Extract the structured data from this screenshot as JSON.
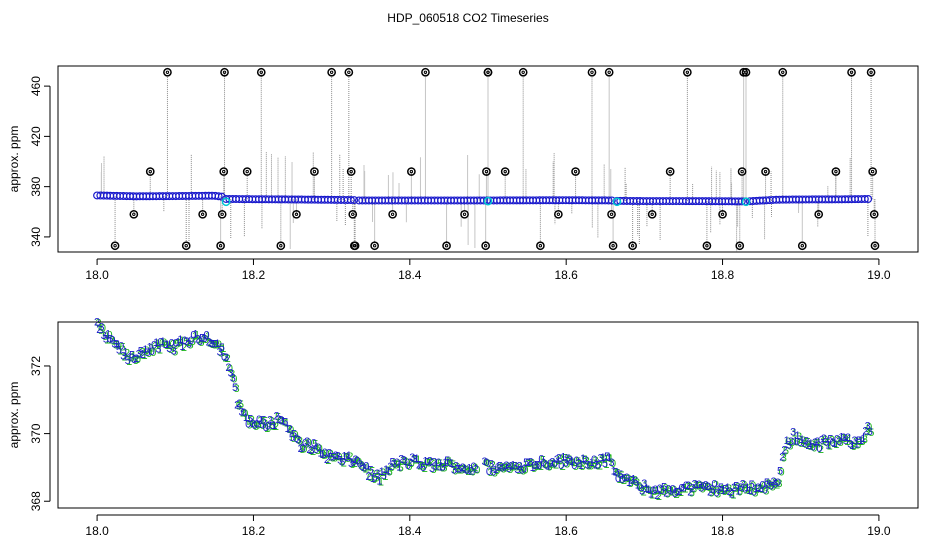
{
  "figure": {
    "title": "HDP_060518  CO2 Timeseries"
  },
  "colors": {
    "background": "#ffffff",
    "frame": "#000000",
    "drop_lines": "#8c8c8c",
    "outlier_points": "#000000",
    "main_points": "#1a1acc",
    "highlight_points": "#00c8d2",
    "bottom_digits_a": "#1a1acc",
    "bottom_digits_b": "#19b419"
  },
  "chart_data": [
    {
      "type": "scatter",
      "title": "HDP_060518  CO2 Timeseries",
      "xlabel": "",
      "ylabel": "approx. ppm",
      "xlim": [
        17.95,
        19.05
      ],
      "ylim": [
        328,
        476
      ],
      "xticks": [
        18.0,
        18.2,
        18.4,
        18.6,
        18.8,
        19.0
      ],
      "xtick_labels": [
        "18.0",
        "18.2",
        "18.4",
        "18.6",
        "18.8",
        "19.0"
      ],
      "yticks": [
        340,
        380,
        420,
        460
      ],
      "ytick_labels": [
        "340",
        "380",
        "420",
        "460"
      ],
      "grid": false,
      "baseline_segments": [
        {
          "x": [
            18.0,
            18.05,
            18.1,
            18.15,
            18.16
          ],
          "y": [
            373,
            372.3,
            372.5,
            372.8,
            372.0
          ]
        },
        {
          "x": [
            18.165,
            18.2,
            18.25,
            18.3,
            18.33
          ],
          "y": [
            370.2,
            370.0,
            369.8,
            369.5,
            369.3
          ]
        },
        {
          "x": [
            18.335,
            18.4,
            18.5,
            18.6,
            18.66
          ],
          "y": [
            369.0,
            369.0,
            369.0,
            369.2,
            369.0
          ]
        },
        {
          "x": [
            18.665,
            18.7,
            18.75,
            18.8,
            18.83
          ],
          "y": [
            368.7,
            368.5,
            368.5,
            368.4,
            368.2
          ]
        },
        {
          "x": [
            18.835,
            18.87,
            18.9,
            18.95,
            18.99
          ],
          "y": [
            368.4,
            369.6,
            369.8,
            369.9,
            370.2
          ]
        }
      ],
      "outliers": {
        "x": [
          18.023,
          18.047,
          18.068,
          18.09,
          18.114,
          18.135,
          18.158,
          18.16,
          18.162,
          18.163,
          18.192,
          18.21,
          18.235,
          18.255,
          18.278,
          18.3,
          18.322,
          18.325,
          18.327,
          18.329,
          18.33,
          18.355,
          18.378,
          18.402,
          18.42,
          18.447,
          18.47,
          18.497,
          18.498,
          18.5,
          18.5,
          18.522,
          18.545,
          18.567,
          18.59,
          18.612,
          18.633,
          18.655,
          18.658,
          18.66,
          18.685,
          18.71,
          18.733,
          18.755,
          18.78,
          18.8,
          18.822,
          18.825,
          18.827,
          18.83,
          18.855,
          18.877,
          18.902,
          18.923,
          18.945,
          18.965,
          18.99,
          18.992,
          18.994,
          18.995
        ],
        "y": [
          333,
          358,
          392,
          471,
          333,
          358,
          333,
          358,
          392,
          471,
          392,
          471,
          333,
          358,
          392,
          471,
          471,
          392,
          358,
          333,
          333,
          333,
          358,
          392,
          471,
          333,
          358,
          333,
          392,
          471,
          471,
          392,
          471,
          333,
          358,
          392,
          471,
          471,
          358,
          333,
          333,
          358,
          392,
          471,
          333,
          358,
          333,
          392,
          471,
          471,
          392,
          471,
          333,
          358,
          392,
          471,
          471,
          392,
          358,
          333
        ]
      },
      "highlight_points": {
        "x": [
          18.165,
          18.5,
          18.665,
          18.83
        ],
        "y": [
          368.0,
          368.5,
          368.0,
          368.0
        ]
      }
    },
    {
      "type": "scatter",
      "title": "",
      "xlabel": "",
      "ylabel": "approx. ppm",
      "xlim": [
        17.95,
        19.05
      ],
      "ylim": [
        367.8,
        373.3
      ],
      "xticks": [
        18.0,
        18.2,
        18.4,
        18.6,
        18.8,
        19.0
      ],
      "xtick_labels": [
        "18.0",
        "18.2",
        "18.4",
        "18.6",
        "18.8",
        "19.0"
      ],
      "yticks": [
        368,
        370,
        372
      ],
      "ytick_labels": [
        "368",
        "370",
        "372"
      ],
      "grid": false,
      "point_glyphs": [
        "3",
        "2",
        "0",
        "1",
        "5"
      ],
      "series": [
        {
          "x": [
            18.0,
            18.01,
            18.02,
            18.03,
            18.04,
            18.05,
            18.06,
            18.08,
            18.1,
            18.12,
            18.14,
            18.155,
            18.16,
            18.17,
            18.175,
            18.18,
            18.19,
            18.2,
            18.22,
            18.235,
            18.25,
            18.26,
            18.27,
            18.3,
            18.33,
            18.34,
            18.35,
            18.36,
            18.37,
            18.38,
            18.4,
            18.42,
            18.45,
            18.47,
            18.48,
            18.495,
            18.5,
            18.52,
            18.55,
            18.58,
            18.6,
            18.63,
            18.655,
            18.665,
            18.68,
            18.7,
            18.72,
            18.75,
            18.77,
            18.8,
            18.81,
            18.815,
            18.83,
            18.84,
            18.85,
            18.87,
            18.88,
            18.89,
            18.9,
            18.92,
            18.95,
            18.97,
            18.98,
            18.99
          ],
          "y": [
            373.2,
            372.9,
            372.7,
            372.5,
            372.2,
            372.3,
            372.5,
            372.6,
            372.6,
            372.8,
            372.9,
            372.6,
            372.5,
            371.9,
            371.4,
            370.9,
            370.5,
            370.3,
            370.3,
            370.5,
            370.0,
            369.6,
            369.7,
            369.3,
            369.2,
            369.1,
            368.8,
            368.7,
            368.9,
            369.1,
            369.2,
            369.1,
            369.1,
            369.0,
            369.0,
            369.1,
            369.0,
            369.0,
            369.1,
            369.2,
            369.2,
            369.2,
            369.2,
            368.8,
            368.6,
            368.4,
            368.3,
            368.4,
            368.4,
            368.4,
            368.3,
            368.3,
            368.5,
            368.4,
            368.4,
            368.6,
            369.6,
            370.0,
            369.8,
            369.7,
            369.8,
            369.8,
            370.0,
            370.2
          ]
        }
      ]
    }
  ]
}
